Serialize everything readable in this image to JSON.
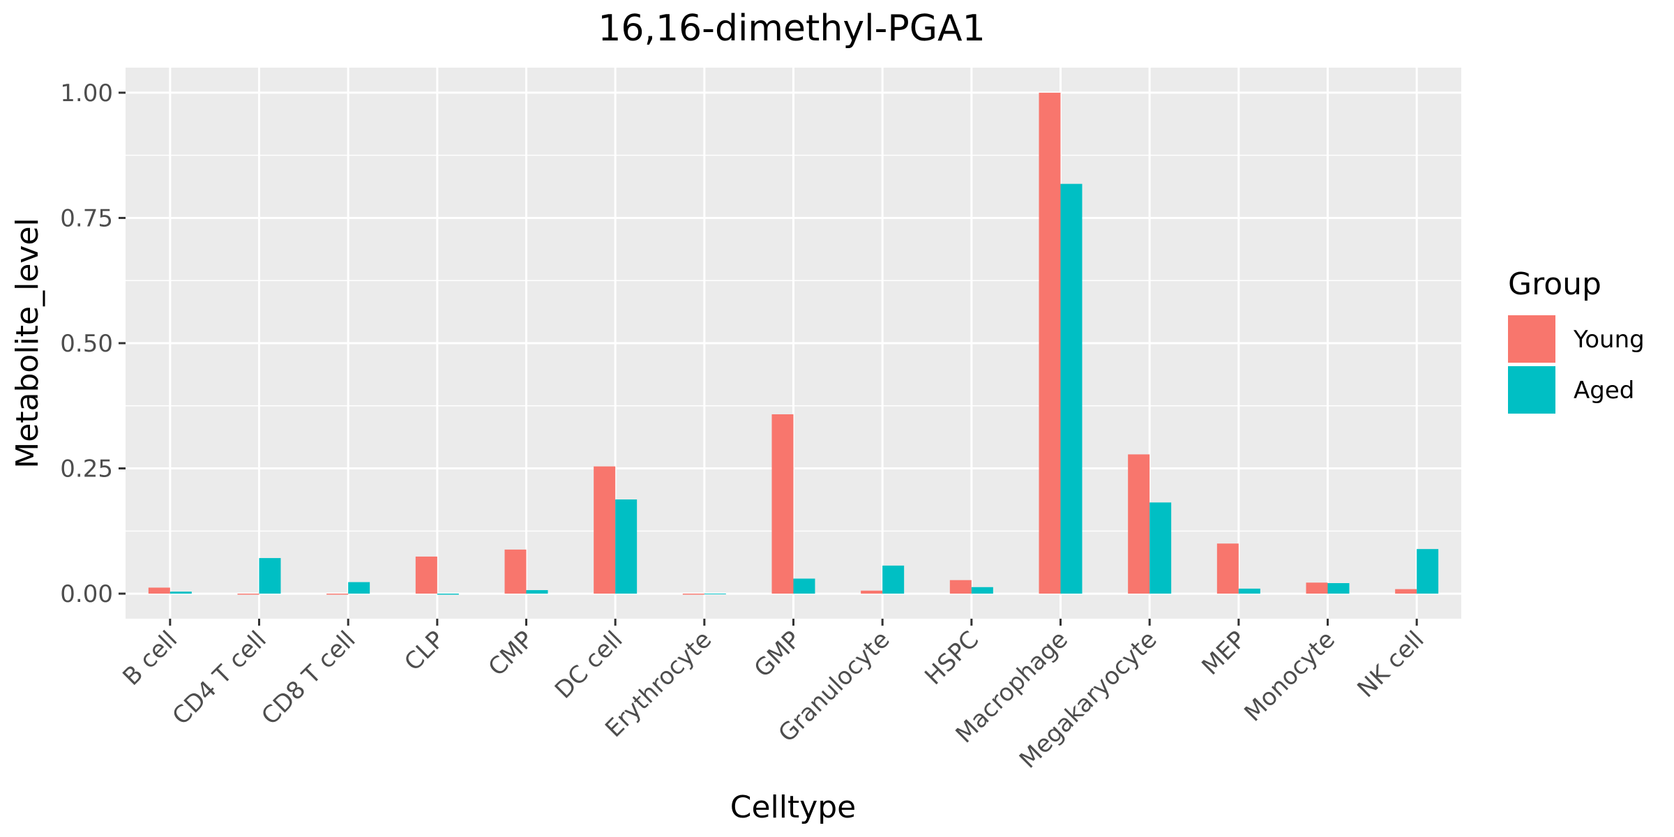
{
  "chart_data": {
    "type": "bar",
    "title": "16,16-dimethyl-PGA1",
    "xlabel": "Celltype",
    "ylabel": "Metabolite_level",
    "ylim": [
      -0.05,
      1.05
    ],
    "yticks": [
      0.0,
      0.25,
      0.5,
      0.75,
      1.0
    ],
    "ytick_labels": [
      "0.00",
      "0.25",
      "0.50",
      "0.75",
      "1.00"
    ],
    "categories": [
      "B cell",
      "CD4 T cell",
      "CD8 T cell",
      "CLP",
      "CMP",
      "DC cell",
      "Erythrocyte",
      "GMP",
      "Granulocyte",
      "HSPC",
      "Macrophage",
      "Megakaryocyte",
      "MEP",
      "Monocyte",
      "NK cell"
    ],
    "series": [
      {
        "name": "Young",
        "color": "#F8766D",
        "values": [
          0.012,
          -0.002,
          -0.002,
          0.074,
          0.088,
          0.254,
          -0.002,
          0.358,
          0.006,
          0.027,
          1.0,
          0.278,
          0.1,
          0.022,
          0.009
        ]
      },
      {
        "name": "Aged",
        "color": "#00BFC4",
        "values": [
          0.004,
          0.071,
          0.023,
          -0.002,
          0.007,
          0.188,
          0.0,
          0.03,
          0.056,
          0.013,
          0.818,
          0.182,
          0.01,
          0.021,
          0.089
        ]
      }
    ],
    "grid": true,
    "legend": {
      "title": "Group",
      "position": "right"
    },
    "panel_background": "#EBEBEB"
  }
}
